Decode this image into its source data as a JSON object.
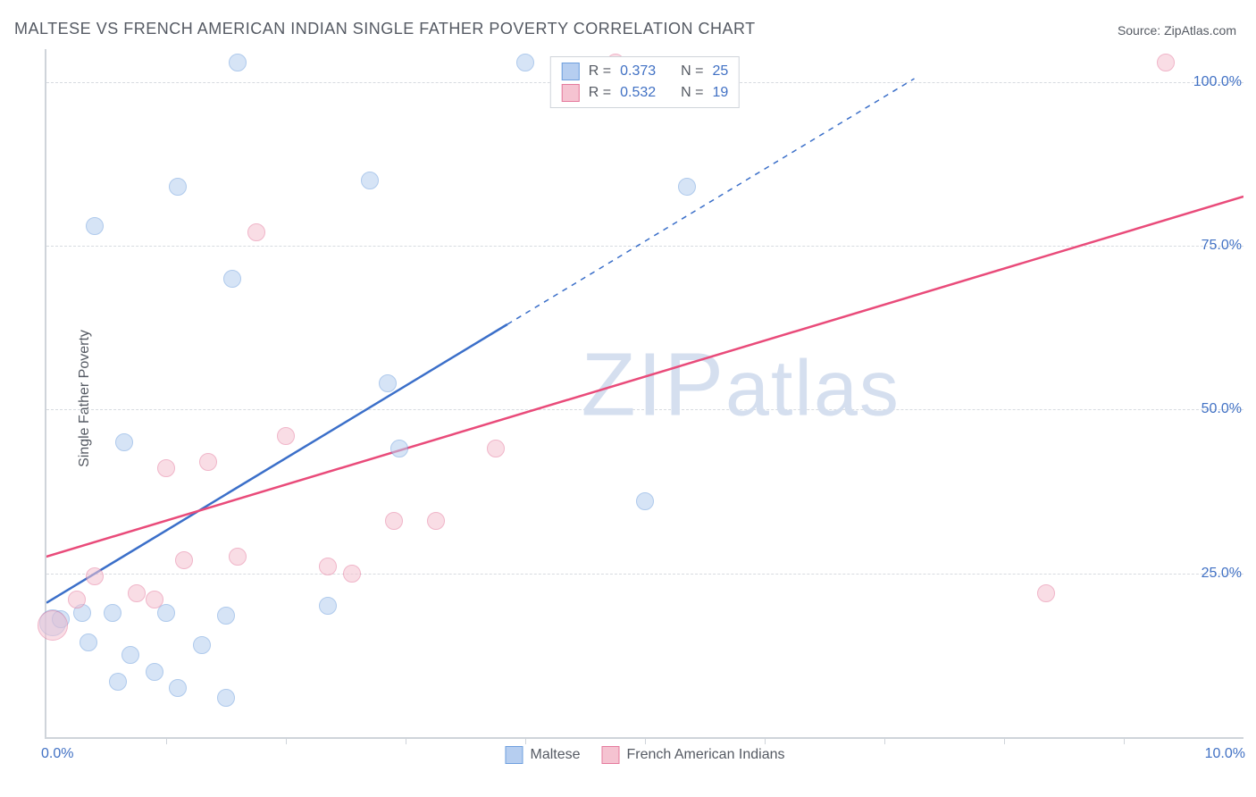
{
  "title": "MALTESE VS FRENCH AMERICAN INDIAN SINGLE FATHER POVERTY CORRELATION CHART",
  "source_prefix": "Source: ",
  "source": "ZipAtlas.com",
  "y_axis_title": "Single Father Poverty",
  "watermark": "ZIPatlas",
  "chart": {
    "type": "scatter",
    "background_color": "#ffffff",
    "grid_color": "#d7dbe0",
    "axis_color": "#cfd4da",
    "tick_label_color": "#4171c4",
    "text_color": "#555a63",
    "xlim": [
      0,
      10
    ],
    "ylim": [
      0,
      105
    ],
    "x_start_label": "0.0%",
    "x_end_label": "10.0%",
    "y_ticks": [
      {
        "value": 25,
        "label": "25.0%"
      },
      {
        "value": 50,
        "label": "50.0%"
      },
      {
        "value": 75,
        "label": "75.0%"
      },
      {
        "value": 100,
        "label": "100.0%"
      }
    ],
    "x_tick_values": [
      1,
      2,
      3,
      4,
      5,
      6,
      7,
      8,
      9
    ],
    "point_radius_default": 9,
    "series": [
      {
        "id": "maltese",
        "label": "Maltese",
        "fill": "#b6cef0",
        "stroke": "#6e9fde",
        "fill_opacity": 0.55,
        "R": "0.373",
        "N": "25",
        "trend": {
          "p1": {
            "x": 0.0,
            "y": 20.5
          },
          "p2_solid": {
            "x": 3.85,
            "y": 63.0
          },
          "p2_dashed": {
            "x": 7.25,
            "y": 100.5
          },
          "color": "#3b6fc9",
          "width": 2.5
        },
        "points": [
          {
            "x": 0.05,
            "y": 17.5,
            "r": 14
          },
          {
            "x": 0.12,
            "y": 18.0
          },
          {
            "x": 0.3,
            "y": 19.0
          },
          {
            "x": 0.55,
            "y": 19.0
          },
          {
            "x": 0.35,
            "y": 14.5
          },
          {
            "x": 0.7,
            "y": 12.5
          },
          {
            "x": 0.9,
            "y": 10.0
          },
          {
            "x": 0.6,
            "y": 8.5
          },
          {
            "x": 1.3,
            "y": 14.0
          },
          {
            "x": 1.5,
            "y": 18.5
          },
          {
            "x": 1.1,
            "y": 7.5
          },
          {
            "x": 1.5,
            "y": 6.0
          },
          {
            "x": 1.0,
            "y": 19.0
          },
          {
            "x": 0.65,
            "y": 45.0
          },
          {
            "x": 0.4,
            "y": 78.0
          },
          {
            "x": 1.1,
            "y": 84.0
          },
          {
            "x": 1.55,
            "y": 70.0
          },
          {
            "x": 1.6,
            "y": 103.0
          },
          {
            "x": 2.7,
            "y": 85.0
          },
          {
            "x": 2.35,
            "y": 20.0
          },
          {
            "x": 2.85,
            "y": 54.0
          },
          {
            "x": 2.95,
            "y": 44.0
          },
          {
            "x": 4.0,
            "y": 103.0
          },
          {
            "x": 5.0,
            "y": 36.0
          },
          {
            "x": 5.35,
            "y": 84.0
          }
        ]
      },
      {
        "id": "french",
        "label": "French American Indians",
        "fill": "#f5c3d1",
        "stroke": "#e57a9d",
        "fill_opacity": 0.55,
        "R": "0.532",
        "N": "19",
        "trend": {
          "p1": {
            "x": -0.1,
            "y": 27.0
          },
          "p2_solid": {
            "x": 10.0,
            "y": 82.5
          },
          "p2_dashed": null,
          "color": "#e94b7a",
          "width": 2.5
        },
        "points": [
          {
            "x": 0.05,
            "y": 17.0,
            "r": 16
          },
          {
            "x": 0.25,
            "y": 21.0
          },
          {
            "x": 0.4,
            "y": 24.5
          },
          {
            "x": 0.75,
            "y": 22.0
          },
          {
            "x": 0.9,
            "y": 21.0
          },
          {
            "x": 1.0,
            "y": 41.0
          },
          {
            "x": 1.35,
            "y": 42.0
          },
          {
            "x": 1.15,
            "y": 27.0
          },
          {
            "x": 1.6,
            "y": 27.5
          },
          {
            "x": 1.75,
            "y": 77.0
          },
          {
            "x": 2.0,
            "y": 46.0
          },
          {
            "x": 2.35,
            "y": 26.0
          },
          {
            "x": 2.55,
            "y": 25.0
          },
          {
            "x": 2.9,
            "y": 33.0
          },
          {
            "x": 3.25,
            "y": 33.0
          },
          {
            "x": 3.75,
            "y": 44.0
          },
          {
            "x": 4.75,
            "y": 103.0
          },
          {
            "x": 8.35,
            "y": 22.0
          },
          {
            "x": 9.35,
            "y": 103.0
          }
        ]
      }
    ],
    "legend_top_labels": {
      "R": "R =",
      "N": "N ="
    }
  }
}
